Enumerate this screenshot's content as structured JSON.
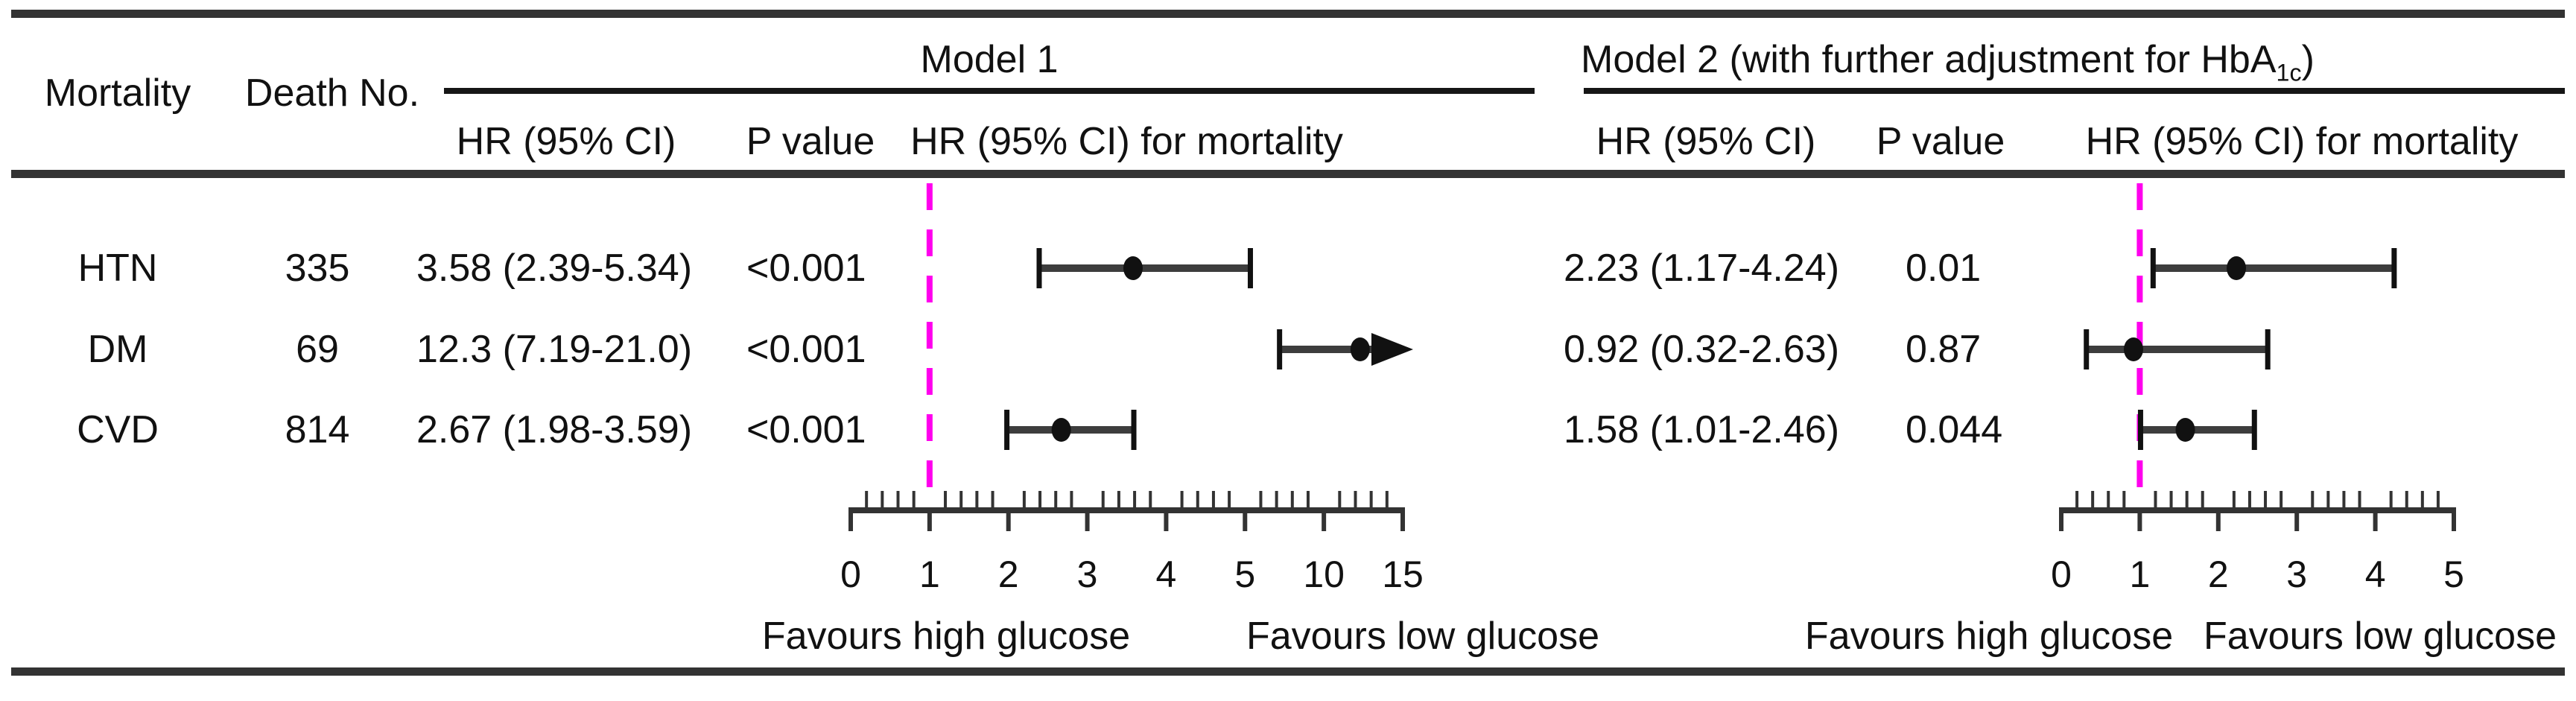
{
  "table": {
    "col_mortality": "Mortality",
    "col_death_no": "Death No.",
    "model1": {
      "title": "Model 1",
      "col_hr": "HR (95% CI)",
      "col_p": "P value",
      "col_forest": "HR (95% CI) for mortality"
    },
    "model2": {
      "title_prefix": "Model 2 (with further adjustment for HbA",
      "title_sub": "1c",
      "title_suffix": ")",
      "col_hr": "HR (95% CI)",
      "col_p": "P value",
      "col_forest": "HR (95% CI) for mortality"
    },
    "rows": [
      {
        "mortality": "HTN",
        "deaths": "335",
        "m1_hr_ci": "3.58 (2.39-5.34)",
        "m1_p": "<0.001",
        "m2_hr_ci": "2.23 (1.17-4.24)",
        "m2_p": "0.01"
      },
      {
        "mortality": "DM",
        "deaths": "69",
        "m1_hr_ci": "12.3 (7.19-21.0)",
        "m1_p": "<0.001",
        "m2_hr_ci": "0.92 (0.32-2.63)",
        "m2_p": "0.87"
      },
      {
        "mortality": "CVD",
        "deaths": "814",
        "m1_hr_ci": "2.67 (1.98-3.59)",
        "m1_p": "<0.001",
        "m2_hr_ci": "1.58 (1.01-2.46)",
        "m2_p": "0.044"
      }
    ]
  },
  "chart_data": [
    {
      "type": "forest",
      "model": "Model 1",
      "ylabel": "",
      "rows": [
        {
          "name": "HTN",
          "hr": 3.58,
          "lo": 2.39,
          "hi": 5.34,
          "hi_clipped": false
        },
        {
          "name": "DM",
          "hr": 12.3,
          "lo": 7.19,
          "hi": 21.0,
          "hi_clipped": true
        },
        {
          "name": "CVD",
          "hr": 2.67,
          "lo": 1.98,
          "hi": 3.59,
          "hi_clipped": false
        }
      ],
      "axis_ticks": [
        0,
        1,
        2,
        3,
        4,
        5,
        10,
        15
      ],
      "minor_per_segment": 5,
      "axis_note": "axis break: equal spacing per tick, 0-5 unit steps then 5-10-15 compressed",
      "reference_value": 1,
      "favours_left": "Favours high glucose",
      "favours_right": "Favours low glucose"
    },
    {
      "type": "forest",
      "model": "Model 2 (with further adjustment for HbA1c)",
      "ylabel": "",
      "rows": [
        {
          "name": "HTN",
          "hr": 2.23,
          "lo": 1.17,
          "hi": 4.24,
          "hi_clipped": false
        },
        {
          "name": "DM",
          "hr": 0.92,
          "lo": 0.32,
          "hi": 2.63,
          "hi_clipped": false
        },
        {
          "name": "CVD",
          "hr": 1.58,
          "lo": 1.01,
          "hi": 2.46,
          "hi_clipped": false
        }
      ],
      "axis_ticks": [
        0,
        1,
        2,
        3,
        4,
        5
      ],
      "minor_per_segment": 5,
      "reference_value": 1,
      "favours_left": "Favours high glucose",
      "favours_right": "Favours low glucose"
    }
  ],
  "colors": {
    "reference_line": "#ff00ee",
    "marker": "#111111",
    "ci_line": "#3d3d3d",
    "cap": "#111111",
    "rule": "#333333",
    "text": "#111111"
  }
}
